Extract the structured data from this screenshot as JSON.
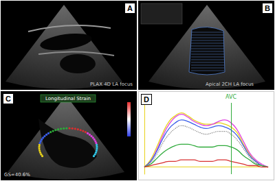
{
  "panels": [
    {
      "label": "A",
      "caption": "PLAX 4D LA focus"
    },
    {
      "label": "B",
      "caption": "Apical 2CH LA focus"
    },
    {
      "label": "C",
      "caption": "Longitudinal Strain",
      "value_text": "GS=40.6%"
    },
    {
      "label": "D"
    }
  ],
  "chart_data": {
    "type": "line",
    "x": [
      0,
      1,
      2,
      3,
      4,
      5,
      6,
      7,
      8,
      9,
      10,
      11,
      12,
      13,
      14,
      15,
      16,
      17,
      18,
      19,
      20
    ],
    "xlim": [
      0,
      20
    ],
    "ylim": [
      -5,
      45
    ],
    "tick_labels": false,
    "grid": false,
    "annotations": [
      {
        "x": 14,
        "label": "AVC"
      }
    ],
    "series": [
      {
        "color": "#e8d21a",
        "line_style": "solid",
        "values": [
          0,
          5,
          14,
          24,
          32,
          36,
          38,
          36,
          33,
          31,
          30,
          30,
          31,
          30,
          28,
          24,
          16,
          9,
          4,
          1,
          0
        ]
      },
      {
        "color": "#e040e0",
        "line_style": "solid",
        "values": [
          0,
          4,
          12,
          22,
          30,
          35,
          37,
          35,
          32,
          30,
          29,
          30,
          32,
          33,
          31,
          26,
          18,
          10,
          5,
          2,
          0
        ]
      },
      {
        "color": "#3a5ee8",
        "line_style": "solid",
        "values": [
          0,
          4,
          11,
          20,
          27,
          31,
          33,
          32,
          30,
          28,
          27,
          28,
          29,
          28,
          26,
          22,
          15,
          8,
          4,
          1,
          0
        ]
      },
      {
        "color": "#888888",
        "line_style": "dotted",
        "values": [
          0,
          3,
          9,
          17,
          23,
          27,
          29,
          28,
          26,
          24,
          23,
          24,
          25,
          25,
          23,
          19,
          13,
          7,
          3,
          1,
          0
        ]
      },
      {
        "color": "#2eaa3a",
        "line_style": "solid",
        "values": [
          0,
          2,
          6,
          10,
          13,
          15,
          16,
          16,
          15,
          14,
          14,
          14,
          15,
          15,
          14,
          12,
          8,
          5,
          2,
          1,
          0
        ]
      },
      {
        "color": "#d83030",
        "line_style": "solid",
        "values": [
          0,
          1,
          2,
          3,
          4,
          4,
          5,
          5,
          5,
          4,
          4,
          4,
          5,
          5,
          4,
          3,
          2,
          1,
          1,
          0,
          0
        ]
      }
    ]
  }
}
